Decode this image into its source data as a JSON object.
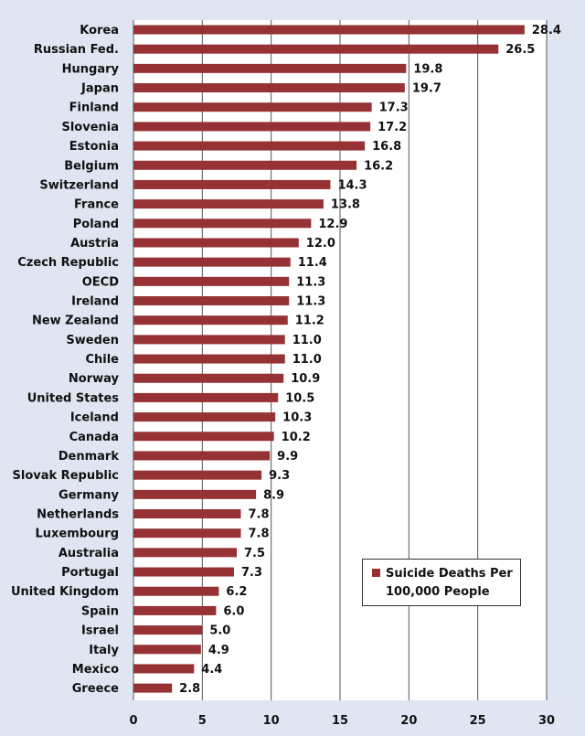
{
  "chart_data": {
    "type": "bar",
    "orientation": "horizontal",
    "categories": [
      "Korea",
      "Russian Fed.",
      "Hungary",
      "Japan",
      "Finland",
      "Slovenia",
      "Estonia",
      "Belgium",
      "Switzerland",
      "France",
      "Poland",
      "Austria",
      "Czech Republic",
      "OECD",
      "Ireland",
      "New Zealand",
      "Sweden",
      "Chile",
      "Norway",
      "United States",
      "Iceland",
      "Canada",
      "Denmark",
      "Slovak Republic",
      "Germany",
      "Netherlands",
      "Luxembourg",
      "Australia",
      "Portugal",
      "United Kingdom",
      "Spain",
      "Israel",
      "Italy",
      "Mexico",
      "Greece"
    ],
    "values": [
      28.4,
      26.5,
      19.8,
      19.7,
      17.3,
      17.2,
      16.8,
      16.2,
      14.3,
      13.8,
      12.9,
      12.0,
      11.4,
      11.3,
      11.3,
      11.2,
      11.0,
      11.0,
      10.9,
      10.5,
      10.3,
      10.2,
      9.9,
      9.3,
      8.9,
      7.8,
      7.8,
      7.5,
      7.3,
      6.2,
      6.0,
      5.0,
      4.9,
      4.4,
      2.8
    ],
    "value_labels": [
      "28.4",
      "26.5",
      "19.8",
      "19.7",
      "17.3",
      "17.2",
      "16.8",
      "16.2",
      "14.3",
      "13.8",
      "12.9",
      "12.0",
      "11.4",
      "11.3",
      "11.3",
      "11.2",
      "11.0",
      "11.0",
      "10.9",
      "10.5",
      "10.3",
      "10.2",
      "9.9",
      "9.3",
      "8.9",
      "7.8",
      "7.8",
      "7.5",
      "7.3",
      "6.2",
      "6.0",
      "5.0",
      "4.9",
      "4.4",
      "2.8"
    ],
    "xticks": [
      0,
      5,
      10,
      15,
      20,
      25,
      30
    ],
    "xlim": [
      0,
      30
    ],
    "title": "",
    "xlabel": "",
    "ylabel": "",
    "grid": "vertical",
    "legend_position": "bottom-right",
    "series": [
      {
        "name": "Suicide Deaths Per 100,000 People"
      }
    ]
  },
  "legend": {
    "line1": "Suicide Deaths Per",
    "line2": "100,000 People"
  },
  "colors": {
    "bar": "#963234",
    "background": "#dfe6f2",
    "plot_background": "#ffffff",
    "gridline": "#555555"
  }
}
